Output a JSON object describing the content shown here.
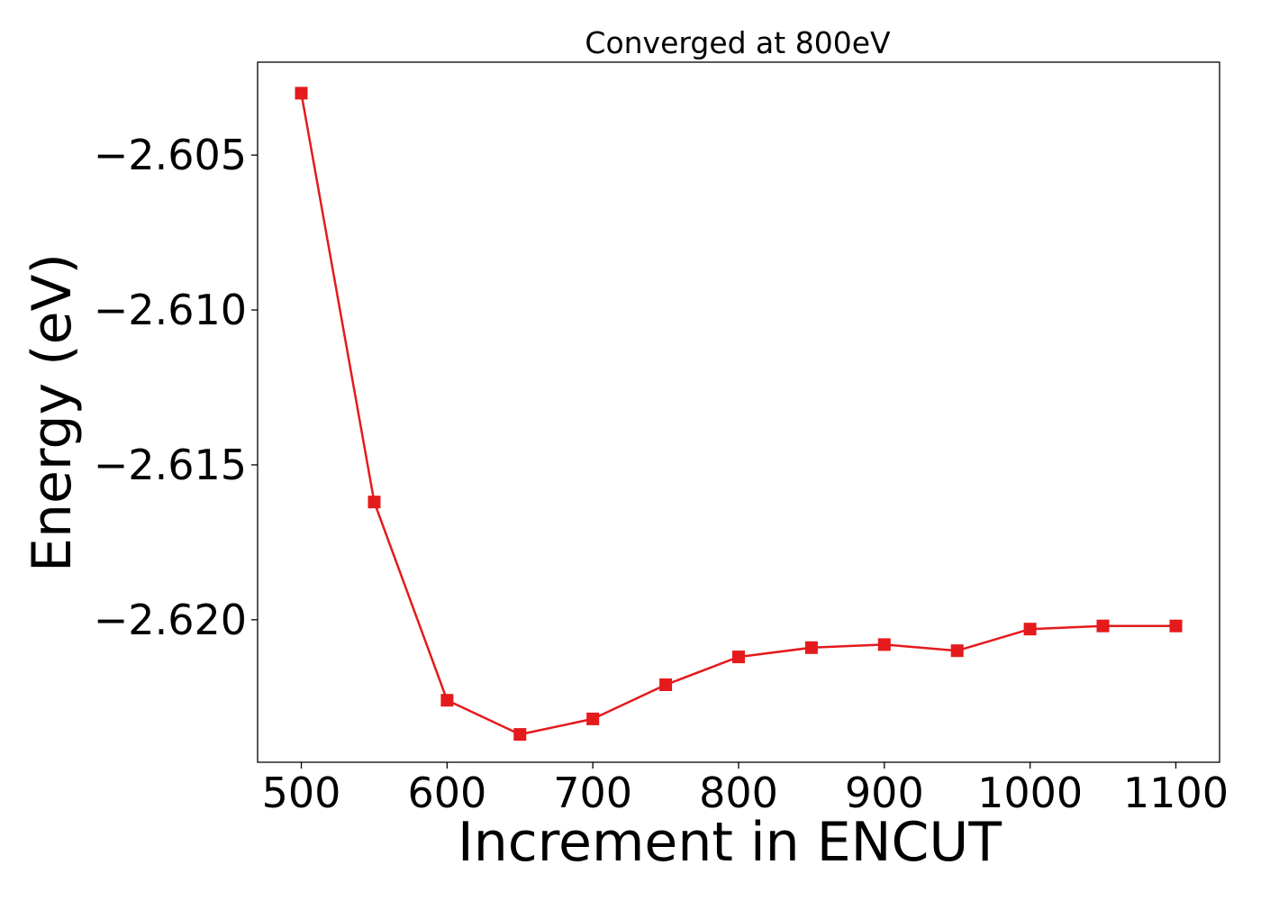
{
  "chart_data": {
    "type": "line",
    "title": "Converged at 800eV",
    "xlabel": "Increment in ENCUT",
    "ylabel": "Energy (eV)",
    "xlim": [
      470,
      1130
    ],
    "ylim": [
      -2.6246,
      -2.602
    ],
    "x_ticks": [
      500,
      600,
      700,
      800,
      900,
      1000,
      1100
    ],
    "x_tick_labels": [
      "500",
      "600",
      "700",
      "800",
      "900",
      "1000",
      "1100"
    ],
    "y_ticks": [
      -2.605,
      -2.61,
      -2.615,
      -2.62
    ],
    "y_tick_labels": [
      "−2.605",
      "−2.610",
      "−2.615",
      "−2.620"
    ],
    "grid": false,
    "legend": "none",
    "series": [
      {
        "color": "#e41a1c",
        "marker": "square",
        "x": [
          500,
          550,
          600,
          650,
          700,
          750,
          800,
          850,
          900,
          950,
          1000,
          1050,
          1100
        ],
        "y": [
          -2.603,
          -2.6162,
          -2.6226,
          -2.6237,
          -2.6232,
          -2.6221,
          -2.6212,
          -2.6209,
          -2.6208,
          -2.621,
          -2.6203,
          -2.6202,
          -2.6202
        ]
      }
    ]
  }
}
